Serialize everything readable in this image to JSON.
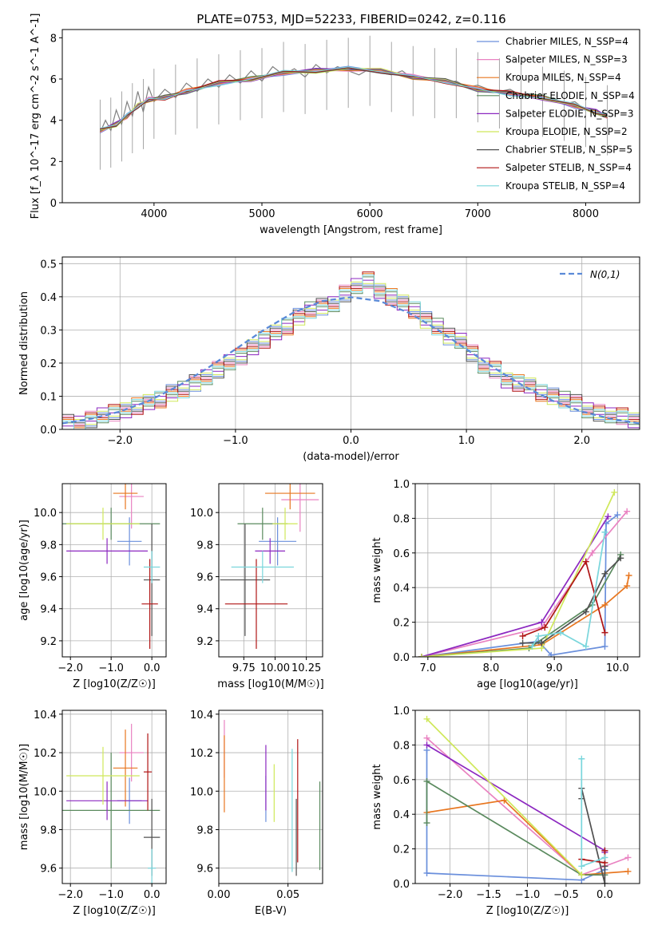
{
  "page_title": "PLATE=0753, MJD=52233, FIBERID=0242, z=0.116",
  "series_names": [
    "Chabrier MILES, N_SSP=4",
    "Salpeter MILES, N_SSP=3",
    "Kroupa MILES, N_SSP=4",
    "Chabrier ELODIE, N_SSP=4",
    "Salpeter ELODIE, N_SSP=3",
    "Kroupa ELODIE, N_SSP=2",
    "Chabrier STELIB, N_SSP=5",
    "Salpeter STELIB, N_SSP=4",
    "Kroupa STELIB, N_SSP=4"
  ],
  "colors": [
    "#6a8fdc",
    "#e982c1",
    "#e8761f",
    "#5a8a5e",
    "#8c28c0",
    "#cfe85a",
    "#505050",
    "#b01515",
    "#7ad6dc"
  ],
  "chart_data": [
    {
      "type": "line",
      "title": "PLATE=0753, MJD=52233, FIBERID=0242, z=0.116",
      "xlabel": "wavelength [Angstrom, rest frame]",
      "ylabel": "Flux [f_λ 10^-17 erg cm^-2 s^-1 A^-1]",
      "xlim": [
        3150,
        8500
      ],
      "ylim": [
        0,
        8.4
      ],
      "xticks": [
        4000,
        5000,
        6000,
        7000,
        8000
      ],
      "yticks": [
        0,
        2,
        4,
        6,
        8
      ],
      "legend": "right",
      "model_x": [
        3500,
        3650,
        3750,
        3850,
        3950,
        4100,
        4300,
        4600,
        4900,
        5200,
        5500,
        5800,
        6100,
        6400,
        6700,
        7000,
        7300,
        7600,
        7900,
        8100,
        8200
      ],
      "model_y": [
        3.5,
        3.8,
        4.2,
        4.7,
        5.0,
        5.1,
        5.4,
        5.8,
        6.0,
        6.3,
        6.4,
        6.5,
        6.4,
        6.1,
        5.9,
        5.5,
        5.3,
        5.1,
        4.7,
        4.4,
        4.2
      ],
      "data_x": [
        3500,
        3550,
        3600,
        3650,
        3700,
        3750,
        3800,
        3850,
        3900,
        3950,
        4000,
        4100,
        4200,
        4300,
        4400,
        4500,
        4600,
        4700,
        4800,
        4900,
        5000,
        5100,
        5200,
        5300,
        5400,
        5500,
        5600,
        5700,
        5800,
        5900,
        6000,
        6100,
        6200,
        6300,
        6400,
        6500,
        6600,
        6700,
        6800,
        6900,
        7000,
        7100,
        7200,
        7300,
        7400,
        7500,
        7600,
        7700,
        7800,
        7900,
        8000,
        8100,
        8200
      ],
      "data_y": [
        3.4,
        4.0,
        3.5,
        4.5,
        3.8,
        4.9,
        4.2,
        5.4,
        4.4,
        5.6,
        4.9,
        5.5,
        5.1,
        5.8,
        5.4,
        6.0,
        5.6,
        6.2,
        5.8,
        6.4,
        5.9,
        6.6,
        6.2,
        6.5,
        6.1,
        6.7,
        6.3,
        6.6,
        6.4,
        6.2,
        6.5,
        6.3,
        6.2,
        6.4,
        6.0,
        6.1,
        5.9,
        5.8,
        5.9,
        5.6,
        5.7,
        5.5,
        5.4,
        5.5,
        5.2,
        5.3,
        5.0,
        5.1,
        4.8,
        4.9,
        4.5,
        4.3,
        4.1
      ]
    },
    {
      "type": "line",
      "xlabel": "(data-model)/error",
      "ylabel": "Normed distribution",
      "xlim": [
        -2.5,
        2.5
      ],
      "ylim": [
        0,
        0.52
      ],
      "xticks": [
        -2,
        -1,
        0,
        1,
        2
      ],
      "yticks": [
        0.0,
        0.1,
        0.2,
        0.3,
        0.4,
        0.5
      ],
      "legend": "top-right",
      "legend_label": "N(0,1)",
      "hist_bins": [
        -2.5,
        -2.4,
        -2.3,
        -2.2,
        -2.1,
        -2.0,
        -1.9,
        -1.8,
        -1.7,
        -1.6,
        -1.5,
        -1.4,
        -1.3,
        -1.2,
        -1.1,
        -1.0,
        -0.9,
        -0.8,
        -0.7,
        -0.6,
        -0.5,
        -0.4,
        -0.3,
        -0.2,
        -0.1,
        0.0,
        0.1,
        0.2,
        0.3,
        0.4,
        0.5,
        0.6,
        0.7,
        0.8,
        0.9,
        1.0,
        1.1,
        1.2,
        1.3,
        1.4,
        1.5,
        1.6,
        1.7,
        1.8,
        1.9,
        2.0,
        2.1,
        2.2,
        2.3,
        2.4,
        2.5
      ],
      "hist_values": [
        0.02,
        0.02,
        0.03,
        0.04,
        0.05,
        0.06,
        0.07,
        0.08,
        0.09,
        0.11,
        0.12,
        0.14,
        0.16,
        0.18,
        0.2,
        0.22,
        0.25,
        0.27,
        0.29,
        0.31,
        0.34,
        0.36,
        0.37,
        0.38,
        0.41,
        0.43,
        0.45,
        0.42,
        0.4,
        0.38,
        0.36,
        0.33,
        0.31,
        0.28,
        0.27,
        0.23,
        0.19,
        0.18,
        0.15,
        0.14,
        0.13,
        0.11,
        0.1,
        0.09,
        0.08,
        0.06,
        0.05,
        0.04,
        0.04,
        0.03
      ],
      "gauss_x": [
        -2.5,
        -2.25,
        -2.0,
        -1.75,
        -1.5,
        -1.25,
        -1.0,
        -0.75,
        -0.5,
        -0.25,
        0.0,
        0.25,
        0.5,
        0.75,
        1.0,
        1.25,
        1.5,
        1.75,
        2.0,
        2.25,
        2.5
      ],
      "gauss_y": [
        0.018,
        0.032,
        0.054,
        0.086,
        0.13,
        0.183,
        0.242,
        0.301,
        0.352,
        0.387,
        0.399,
        0.387,
        0.352,
        0.301,
        0.242,
        0.183,
        0.13,
        0.086,
        0.054,
        0.032,
        0.018
      ]
    },
    {
      "type": "scatter",
      "xlabel": "Z [log10(Z/Z☉)]",
      "ylabel": "age  [log10(age/yr)]",
      "xlim": [
        -2.2,
        0.35
      ],
      "ylim": [
        9.1,
        10.18
      ],
      "xticks": [
        -2,
        -1,
        0
      ],
      "yticks": [
        9.2,
        9.4,
        9.6,
        9.8,
        10.0
      ],
      "points": [
        {
          "series": 0,
          "x": -0.55,
          "y": 9.82,
          "xerr": 0.3,
          "yerr": 0.15
        },
        {
          "series": 1,
          "x": -0.5,
          "y": 10.1,
          "xerr": 0.3,
          "yerr": 0.2
        },
        {
          "series": 2,
          "x": -0.65,
          "y": 10.12,
          "xerr": 0.3,
          "yerr": 0.1
        },
        {
          "series": 3,
          "x": -1.0,
          "y": 9.93,
          "xerr": 1.2,
          "yerr": 0.1
        },
        {
          "series": 4,
          "x": -1.1,
          "y": 9.76,
          "xerr": 1.0,
          "yerr": 0.08
        },
        {
          "series": 5,
          "x": -1.2,
          "y": 9.93,
          "xerr": 0.9,
          "yerr": 0.1
        },
        {
          "series": 6,
          "x": 0.0,
          "y": 9.58,
          "xerr": 0.2,
          "yerr": 0.35
        },
        {
          "series": 7,
          "x": -0.05,
          "y": 9.43,
          "xerr": 0.2,
          "yerr": 0.28
        },
        {
          "series": 8,
          "x": 0.0,
          "y": 9.66,
          "xerr": 0.2,
          "yerr": 0.1
        }
      ]
    },
    {
      "type": "scatter",
      "xlabel": "mass [log10(M/M☉)]",
      "ylabel": "",
      "xlim": [
        9.55,
        10.38
      ],
      "ylim": [
        9.1,
        10.18
      ],
      "xticks": [
        9.75,
        10.0,
        10.25
      ],
      "yticks": [
        9.2,
        9.4,
        9.6,
        9.8,
        10.0
      ],
      "points": [
        {
          "series": 0,
          "x": 10.02,
          "y": 9.82,
          "xerr": 0.15,
          "yerr": 0.15
        },
        {
          "series": 1,
          "x": 10.2,
          "y": 10.08,
          "xerr": 0.15,
          "yerr": 0.2
        },
        {
          "series": 2,
          "x": 10.12,
          "y": 10.12,
          "xerr": 0.2,
          "yerr": 0.1
        },
        {
          "series": 3,
          "x": 9.9,
          "y": 9.93,
          "xerr": 0.2,
          "yerr": 0.1
        },
        {
          "series": 4,
          "x": 9.96,
          "y": 9.76,
          "xerr": 0.12,
          "yerr": 0.08
        },
        {
          "series": 5,
          "x": 10.08,
          "y": 9.93,
          "xerr": 0.1,
          "yerr": 0.1
        },
        {
          "series": 6,
          "x": 9.76,
          "y": 9.58,
          "xerr": 0.2,
          "yerr": 0.35
        },
        {
          "series": 7,
          "x": 9.85,
          "y": 9.43,
          "xerr": 0.25,
          "yerr": 0.28
        },
        {
          "series": 8,
          "x": 9.9,
          "y": 9.66,
          "xerr": 0.25,
          "yerr": 0.1
        }
      ]
    },
    {
      "type": "line",
      "xlabel": "age  [log10(age/yr)]",
      "ylabel": "mass weight",
      "xlim": [
        6.8,
        10.35
      ],
      "ylim": [
        0,
        1.0
      ],
      "xticks": [
        7,
        8,
        9,
        10
      ],
      "yticks": [
        0.0,
        0.2,
        0.4,
        0.6,
        0.8,
        1.0
      ],
      "series": [
        {
          "series": 0,
          "x": [
            6.9,
            8.75,
            8.95,
            9.8,
            9.82,
            10.0
          ],
          "y": [
            0.0,
            0.09,
            0.01,
            0.06,
            0.77,
            0.82
          ]
        },
        {
          "series": 1,
          "x": [
            6.9,
            8.8,
            9.6,
            10.15
          ],
          "y": [
            0.0,
            0.17,
            0.6,
            0.84
          ]
        },
        {
          "series": 2,
          "x": [
            6.9,
            8.8,
            9.8,
            10.15,
            10.18
          ],
          "y": [
            0.0,
            0.07,
            0.3,
            0.41,
            0.47
          ]
        },
        {
          "series": 3,
          "x": [
            6.9,
            8.6,
            9.6,
            10.05
          ],
          "y": [
            0.0,
            0.05,
            0.3,
            0.59
          ]
        },
        {
          "series": 4,
          "x": [
            6.9,
            8.8,
            9.85
          ],
          "y": [
            0.0,
            0.2,
            0.81
          ]
        },
        {
          "series": 5,
          "x": [
            6.9,
            8.8,
            9.95
          ],
          "y": [
            0.0,
            0.05,
            0.95
          ]
        },
        {
          "series": 6,
          "x": [
            8.5,
            8.8,
            9.5,
            9.8,
            10.05
          ],
          "y": [
            0.08,
            0.08,
            0.26,
            0.48,
            0.57
          ]
        },
        {
          "series": 7,
          "x": [
            8.5,
            8.85,
            9.5,
            9.8
          ],
          "y": [
            0.12,
            0.17,
            0.55,
            0.14
          ]
        },
        {
          "series": 8,
          "x": [
            8.65,
            8.75,
            9.1,
            9.5,
            9.8
          ],
          "y": [
            0.06,
            0.12,
            0.14,
            0.06,
            0.72
          ]
        }
      ]
    },
    {
      "type": "scatter",
      "xlabel": "Z [log10(Z/Z☉)]",
      "ylabel": "mass [log10(M/M☉)]",
      "xlim": [
        -2.2,
        0.35
      ],
      "ylim": [
        9.52,
        10.42
      ],
      "xticks": [
        -2,
        -1,
        0
      ],
      "yticks": [
        9.6,
        9.8,
        10.0,
        10.2,
        10.4
      ],
      "points": [
        {
          "series": 0,
          "x": -0.55,
          "y": 9.95,
          "xerr": 0.3,
          "yerr": 0.12
        },
        {
          "series": 1,
          "x": -0.5,
          "y": 10.2,
          "xerr": 0.3,
          "yerr": 0.15
        },
        {
          "series": 2,
          "x": -0.65,
          "y": 10.12,
          "xerr": 0.3,
          "yerr": 0.2
        },
        {
          "series": 3,
          "x": -1.0,
          "y": 9.9,
          "xerr": 1.2,
          "yerr": 0.3
        },
        {
          "series": 4,
          "x": -1.1,
          "y": 9.95,
          "xerr": 1.0,
          "yerr": 0.1
        },
        {
          "series": 5,
          "x": -1.2,
          "y": 10.08,
          "xerr": 0.9,
          "yerr": 0.15
        },
        {
          "series": 6,
          "x": 0.0,
          "y": 9.76,
          "xerr": 0.2,
          "yerr": 0.2
        },
        {
          "series": 7,
          "x": -0.1,
          "y": 10.1,
          "xerr": 0.1,
          "yerr": 0.2
        },
        {
          "series": 8,
          "x": 0.0,
          "y": 9.6,
          "xerr": 0.1,
          "yerr": 0.1
        }
      ]
    },
    {
      "type": "scatter",
      "xlabel": "E(B-V)",
      "ylabel": "",
      "xlim": [
        0.0,
        0.075
      ],
      "ylim": [
        9.52,
        10.42
      ],
      "xticks": [
        0.0,
        0.05
      ],
      "yticks": [
        9.6,
        9.8,
        10.0,
        10.2,
        10.4
      ],
      "points": [
        {
          "series": 0,
          "x": 0.034,
          "y": 9.96,
          "xerr": 0,
          "yerr": 0.12
        },
        {
          "series": 1,
          "x": 0.004,
          "y": 10.22,
          "xerr": 0,
          "yerr": 0.15
        },
        {
          "series": 2,
          "x": 0.004,
          "y": 10.09,
          "xerr": 0,
          "yerr": 0.2
        },
        {
          "series": 3,
          "x": 0.073,
          "y": 9.82,
          "xerr": 0,
          "yerr": 0.23
        },
        {
          "series": 4,
          "x": 0.034,
          "y": 10.07,
          "xerr": 0,
          "yerr": 0.17
        },
        {
          "series": 5,
          "x": 0.04,
          "y": 9.99,
          "xerr": 0,
          "yerr": 0.15
        },
        {
          "series": 6,
          "x": 0.056,
          "y": 9.76,
          "xerr": 0,
          "yerr": 0.2
        },
        {
          "series": 7,
          "x": 0.057,
          "y": 9.95,
          "xerr": 0,
          "yerr": 0.32
        },
        {
          "series": 8,
          "x": 0.053,
          "y": 9.9,
          "xerr": 0,
          "yerr": 0.32
        }
      ]
    },
    {
      "type": "line",
      "xlabel": "Z [log10(Z/Z☉)]",
      "ylabel": "mass weight",
      "xlim": [
        -2.45,
        0.45
      ],
      "ylim": [
        0,
        1.0
      ],
      "xticks": [
        -2.0,
        -1.5,
        -1.0,
        -0.5,
        0.0
      ],
      "yticks": [
        0.0,
        0.2,
        0.4,
        0.6,
        0.8,
        1.0
      ],
      "series": [
        {
          "series": 0,
          "x": [
            -2.3,
            -2.3,
            -0.3,
            0.0,
            0.0
          ],
          "y": [
            0.77,
            0.06,
            0.02,
            0.08,
            0.1
          ]
        },
        {
          "series": 1,
          "x": [
            -2.3,
            -0.3,
            0.3
          ],
          "y": [
            0.84,
            0.05,
            0.15
          ]
        },
        {
          "series": 2,
          "x": [
            -2.3,
            -1.3,
            -0.3,
            0.3
          ],
          "y": [
            0.41,
            0.48,
            0.05,
            0.07
          ]
        },
        {
          "series": 3,
          "x": [
            -2.3,
            -2.3,
            -0.3,
            0.0
          ],
          "y": [
            0.35,
            0.59,
            0.05,
            0.05
          ]
        },
        {
          "series": 4,
          "x": [
            -2.3,
            0.0,
            0.0
          ],
          "y": [
            0.8,
            0.19,
            0.18
          ]
        },
        {
          "series": 5,
          "x": [
            -2.3,
            -0.3
          ],
          "y": [
            0.95,
            0.05
          ]
        },
        {
          "series": 6,
          "x": [
            -0.3,
            -0.3,
            0.0,
            0.0
          ],
          "y": [
            0.49,
            0.55,
            0.0,
            0.1
          ]
        },
        {
          "series": 7,
          "x": [
            -0.3,
            0.0,
            0.0
          ],
          "y": [
            0.14,
            0.12,
            0.19
          ]
        },
        {
          "series": 8,
          "x": [
            -0.3,
            -0.3,
            0.0
          ],
          "y": [
            0.72,
            0.1,
            0.15
          ]
        }
      ]
    }
  ]
}
